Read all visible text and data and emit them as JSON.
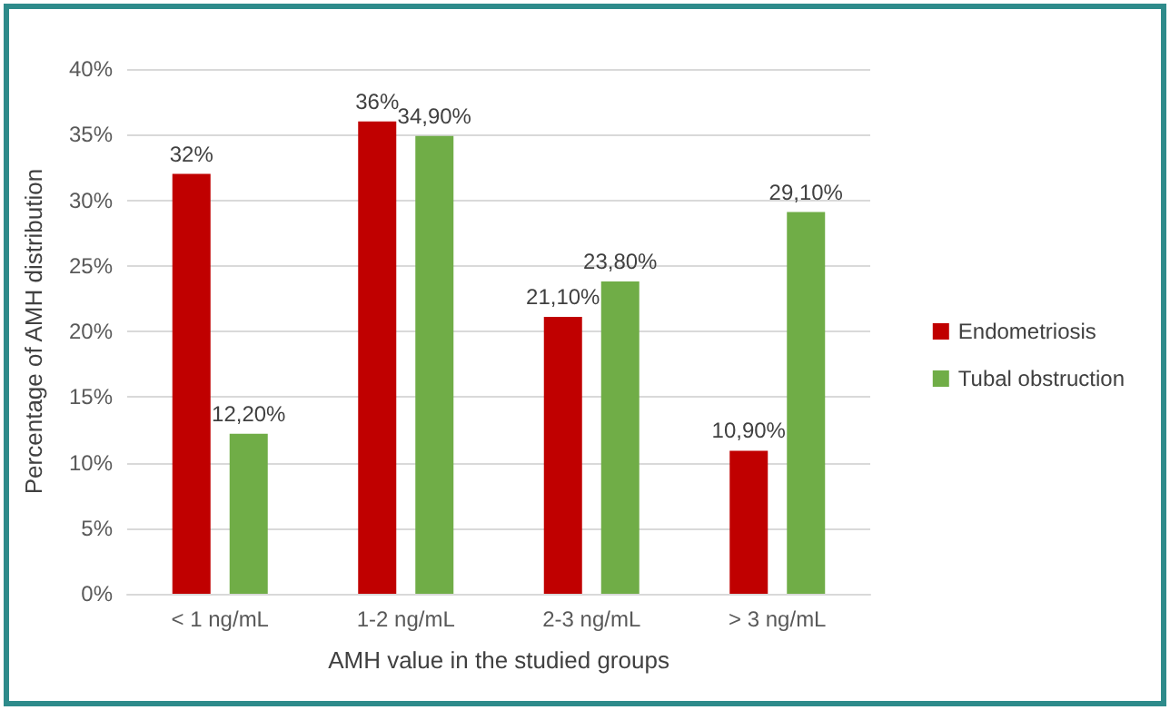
{
  "chart_data": {
    "type": "bar",
    "xlabel": "AMH value in the studied groups",
    "ylabel": "Percentage of AMH distribution",
    "categories": [
      "< 1 ng/mL",
      "1-2 ng/mL",
      "2-3 ng/mL",
      "> 3 ng/mL"
    ],
    "series": [
      {
        "name": "Endometriosis",
        "color": "#c00000",
        "values": [
          32,
          36,
          21.1,
          10.9
        ],
        "value_labels": [
          "32%",
          "36%",
          "21,10%",
          "10,90%"
        ]
      },
      {
        "name": "Tubal obstruction",
        "color": "#70ad47",
        "values": [
          12.2,
          34.9,
          23.8,
          29.1
        ],
        "value_labels": [
          "12,20%",
          "34,90%",
          "23,80%",
          "29,10%"
        ]
      }
    ],
    "ylim": [
      0,
      40
    ],
    "yticks": [
      {
        "value": 0,
        "label": "0%"
      },
      {
        "value": 5,
        "label": "5%"
      },
      {
        "value": 10,
        "label": "10%"
      },
      {
        "value": 15,
        "label": "15%"
      },
      {
        "value": 20,
        "label": "20%"
      },
      {
        "value": 25,
        "label": "25%"
      },
      {
        "value": 30,
        "label": "30%"
      },
      {
        "value": 35,
        "label": "35%"
      },
      {
        "value": 40,
        "label": "40%"
      }
    ],
    "grid": "y",
    "legend": "right"
  }
}
